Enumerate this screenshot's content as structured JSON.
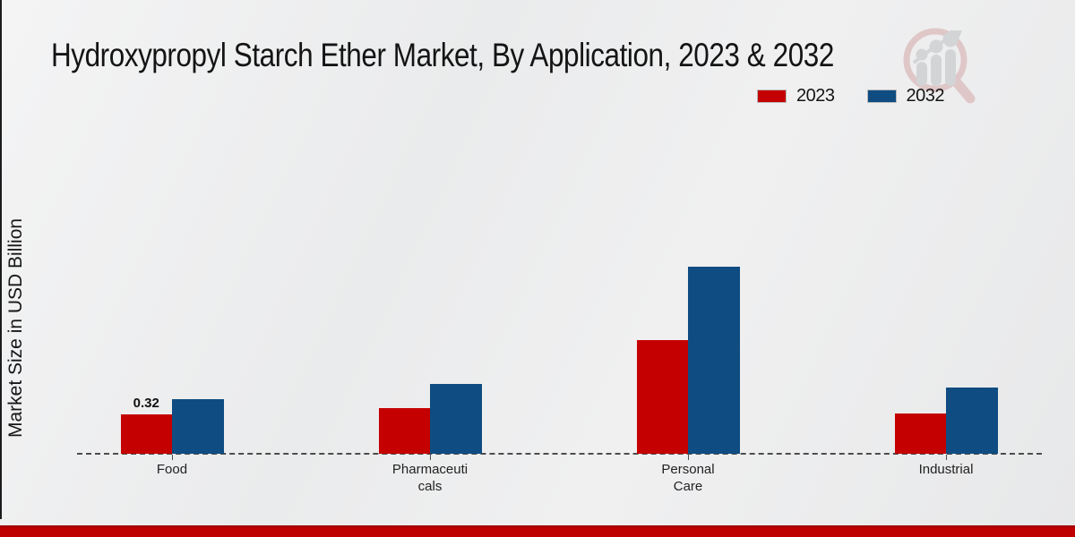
{
  "title": "Hydroxypropyl Starch Ether Market, By Application, 2023 & 2032",
  "y_axis_label": "Market Size in USD Billion",
  "legend": [
    {
      "label": "2023",
      "color": "#c40001"
    },
    {
      "label": "2032",
      "color": "#0f4c81"
    }
  ],
  "watermark_name": "market-research-future-logo",
  "brand": {
    "red": "#c00000",
    "logo_gray": "#d2d3d5",
    "logo_ring": "#dfc5c6"
  },
  "chart_data": {
    "type": "bar",
    "title": "Hydroxypropyl Starch Ether Market, By Application, 2023 & 2032",
    "xlabel": "",
    "ylabel": "Market Size in USD Billion",
    "categories": [
      "Food",
      "Pharmaceuticals",
      "Personal Care",
      "Industrial"
    ],
    "category_display_lines": [
      [
        "Food"
      ],
      [
        "Pharmaceuti",
        "cals"
      ],
      [
        "Personal",
        "Care"
      ],
      [
        "Industrial"
      ]
    ],
    "series": [
      {
        "name": "2023",
        "color": "#c40001",
        "values": [
          0.32,
          0.37,
          0.92,
          0.33
        ]
      },
      {
        "name": "2032",
        "color": "#0f4c81",
        "values": [
          0.44,
          0.57,
          1.52,
          0.54
        ]
      }
    ],
    "data_labels": [
      {
        "series": "2023",
        "category": "Food",
        "text": "0.32"
      }
    ],
    "ylim": [
      0,
      1.6
    ],
    "grid": false,
    "y_ticks_visible": false,
    "legend_position": "top-right",
    "baseline_style": "dashed"
  }
}
